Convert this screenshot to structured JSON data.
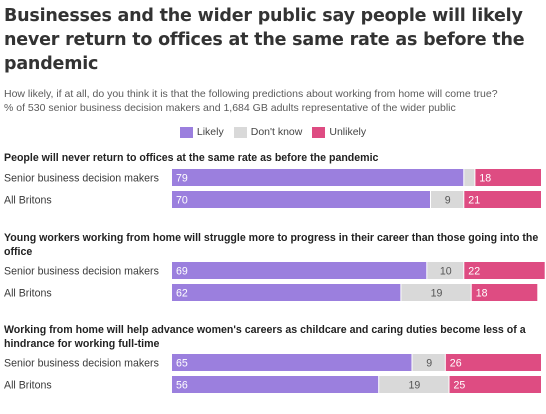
{
  "title": "Businesses and the wider public say people will likely never return to offices at the same rate as before the pandemic",
  "subtitle_line1": "How likely, if at all, do you think it is that the following predictions about working from home will come true?",
  "subtitle_line2": "% of 530 senior business decision makers and 1,684 GB adults representative of the wider public",
  "legend": [
    {
      "label": "Likely",
      "color": "#9b7fde"
    },
    {
      "label": "Don't know",
      "color": "#d9d9d9"
    },
    {
      "label": "Unlikely",
      "color": "#de4c82"
    }
  ],
  "chart_data": {
    "type": "bar",
    "stacked": true,
    "orientation": "horizontal",
    "xlim": [
      0,
      100
    ],
    "legend_position": "top-center",
    "series_names": [
      "Likely",
      "Don't know",
      "Unlikely"
    ],
    "groups": [
      {
        "question": "People will never return to offices at the same rate as before the pandemic",
        "rows": [
          {
            "label": "Senior business decision makers",
            "likely": 79,
            "dont_know": 3,
            "unlikely": 18,
            "dont_know_label_shown": false
          },
          {
            "label": "All Britons",
            "likely": 70,
            "dont_know": 9,
            "unlikely": 21,
            "dont_know_label_shown": true
          }
        ]
      },
      {
        "question": "Young workers working from home will struggle more to progress in their career than those going into the office",
        "rows": [
          {
            "label": "Senior business decision makers",
            "likely": 69,
            "dont_know": 10,
            "unlikely": 22,
            "dont_know_label_shown": true
          },
          {
            "label": "All Britons",
            "likely": 62,
            "dont_know": 19,
            "unlikely": 18,
            "dont_know_label_shown": true
          }
        ]
      },
      {
        "question": "Working from home will help advance women's careers as childcare and caring duties become less of a hindrance for working full-time",
        "rows": [
          {
            "label": "Senior business decision makers",
            "likely": 65,
            "dont_know": 9,
            "unlikely": 26,
            "dont_know_label_shown": true
          },
          {
            "label": "All Britons",
            "likely": 56,
            "dont_know": 19,
            "unlikely": 25,
            "dont_know_label_shown": true
          }
        ]
      }
    ]
  }
}
